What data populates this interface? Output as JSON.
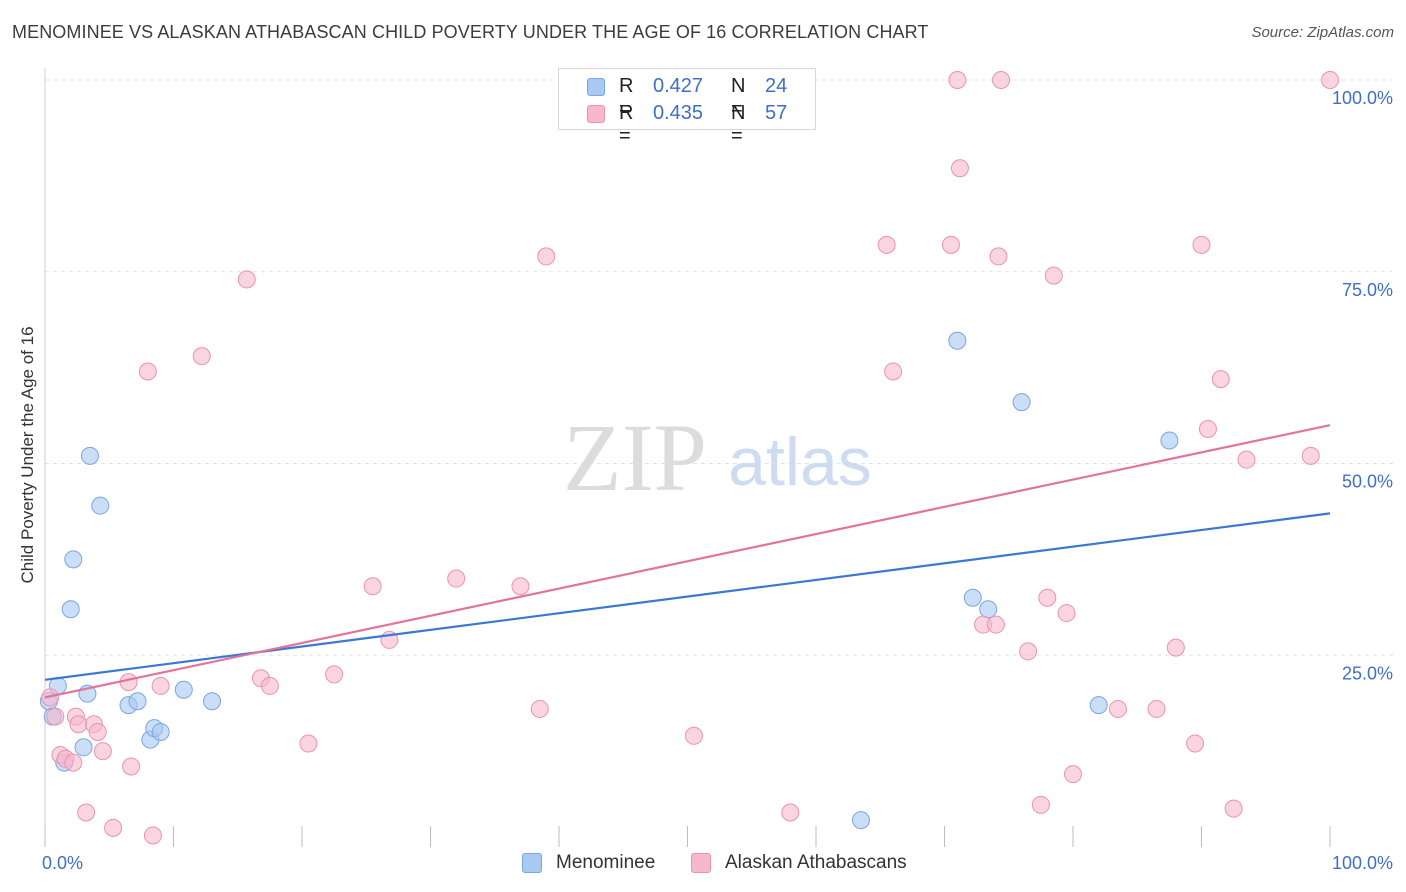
{
  "title": "MENOMINEE VS ALASKAN ATHABASCAN CHILD POVERTY UNDER THE AGE OF 16 CORRELATION CHART",
  "source": "Source: ZipAtlas.com",
  "watermark": {
    "zip": "ZIP",
    "atlas": "atlas"
  },
  "legend": {
    "series1": {
      "r_label": "R =",
      "r_value": "0.427",
      "n_label": "N =",
      "n_value": "24"
    },
    "series2": {
      "r_label": "R =",
      "r_value": "0.435",
      "n_label": "N =",
      "n_value": "57"
    }
  },
  "colors": {
    "menominee_fill": "#a9c8f2",
    "menominee_stroke": "#7aa6e0",
    "menominee_line": "#3a78d4",
    "alaskan_fill": "#f7b8cb",
    "alaskan_stroke": "#eb93ae",
    "alaskan_line": "#e2739a",
    "tick_text": "#3d6fc9"
  },
  "chart_data": {
    "type": "scatter",
    "title": "MENOMINEE VS ALASKAN ATHABASCAN CHILD POVERTY UNDER THE AGE OF 16 CORRELATION CHART",
    "xlabel": "",
    "ylabel": "Child Poverty Under the Age of 16",
    "xlim": [
      0,
      100
    ],
    "ylim": [
      0,
      100
    ],
    "x_tick_labels": [
      "0.0%",
      "100.0%"
    ],
    "y_ticks": [
      25,
      50,
      75,
      100
    ],
    "y_tick_labels": [
      "25.0%",
      "50.0%",
      "75.0%",
      "100.0%"
    ],
    "grid": true,
    "legend_position": "bottom-center",
    "series": [
      {
        "name": "Menominee",
        "points": [
          [
            0.3,
            19.0
          ],
          [
            0.6,
            17.0
          ],
          [
            1.0,
            21.0
          ],
          [
            1.5,
            11.0
          ],
          [
            2.0,
            31.0
          ],
          [
            2.2,
            37.5
          ],
          [
            3.0,
            13.0
          ],
          [
            3.3,
            20.0
          ],
          [
            3.5,
            51.0
          ],
          [
            4.3,
            44.5
          ],
          [
            6.5,
            18.5
          ],
          [
            7.2,
            19.0
          ],
          [
            8.2,
            14.0
          ],
          [
            8.5,
            15.5
          ],
          [
            9.0,
            15.0
          ],
          [
            10.8,
            20.5
          ],
          [
            13.0,
            19.0
          ],
          [
            71.0,
            66.0
          ],
          [
            72.2,
            32.5
          ],
          [
            73.4,
            31.0
          ],
          [
            76.0,
            58.0
          ],
          [
            82.0,
            18.5
          ],
          [
            87.5,
            53.0
          ],
          [
            63.5,
            3.5
          ]
        ],
        "trend": {
          "x": [
            0,
            100
          ],
          "y": [
            21.8,
            43.5
          ]
        }
      },
      {
        "name": "Alaskan Athabascans",
        "points": [
          [
            0.4,
            19.5
          ],
          [
            0.8,
            17.0
          ],
          [
            1.2,
            12.0
          ],
          [
            1.6,
            11.5
          ],
          [
            2.2,
            11.0
          ],
          [
            2.4,
            17.0
          ],
          [
            2.6,
            16.0
          ],
          [
            3.2,
            4.5
          ],
          [
            3.8,
            16.0
          ],
          [
            4.1,
            15.0
          ],
          [
            4.5,
            12.5
          ],
          [
            5.3,
            2.5
          ],
          [
            6.5,
            21.5
          ],
          [
            6.7,
            10.5
          ],
          [
            8.0,
            62.0
          ],
          [
            8.4,
            1.5
          ],
          [
            9.0,
            21.0
          ],
          [
            12.2,
            64.0
          ],
          [
            15.7,
            74.0
          ],
          [
            16.8,
            22.0
          ],
          [
            17.5,
            21.0
          ],
          [
            20.5,
            13.5
          ],
          [
            22.5,
            22.5
          ],
          [
            25.5,
            34.0
          ],
          [
            26.8,
            27.0
          ],
          [
            32.0,
            35.0
          ],
          [
            37.0,
            34.0
          ],
          [
            38.5,
            18.0
          ],
          [
            39.0,
            77.0
          ],
          [
            50.5,
            14.5
          ],
          [
            58.0,
            4.5
          ],
          [
            65.5,
            78.5
          ],
          [
            66.0,
            62.0
          ],
          [
            70.5,
            78.5
          ],
          [
            71.0,
            100.0
          ],
          [
            71.2,
            88.5
          ],
          [
            73.0,
            29.0
          ],
          [
            74.0,
            29.0
          ],
          [
            74.2,
            77.0
          ],
          [
            74.4,
            100.0
          ],
          [
            76.5,
            25.5
          ],
          [
            77.5,
            5.5
          ],
          [
            78.0,
            32.5
          ],
          [
            78.5,
            74.5
          ],
          [
            79.5,
            30.5
          ],
          [
            80.0,
            9.5
          ],
          [
            83.5,
            18.0
          ],
          [
            86.5,
            18.0
          ],
          [
            88.0,
            26.0
          ],
          [
            89.5,
            13.5
          ],
          [
            90.0,
            78.5
          ],
          [
            90.5,
            54.5
          ],
          [
            91.5,
            61.0
          ],
          [
            92.5,
            5.0
          ],
          [
            93.5,
            50.5
          ],
          [
            98.5,
            51.0
          ],
          [
            100.0,
            100.0
          ]
        ],
        "trend": {
          "x": [
            0,
            100
          ],
          "y": [
            19.5,
            55.0
          ]
        }
      }
    ]
  },
  "bottom_legend": {
    "item1": "Menominee",
    "item2": "Alaskan Athabascans"
  }
}
